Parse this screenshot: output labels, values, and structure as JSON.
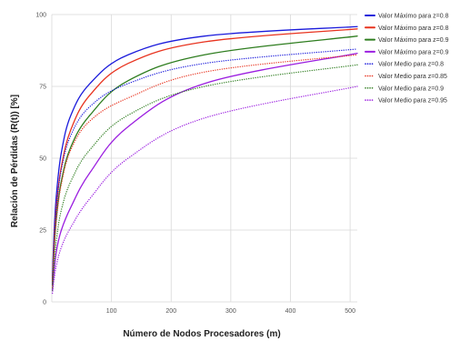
{
  "chart_data": {
    "type": "line",
    "title": "",
    "xlabel": "Número de Nodos Procesadores (m)",
    "ylabel": "Relación de Pérdidas (R(t)) [%]",
    "xlim": [
      0,
      512
    ],
    "ylim": [
      0,
      100
    ],
    "x_ticks": [
      100,
      200,
      300,
      400,
      500
    ],
    "y_ticks": [
      0,
      25,
      50,
      75,
      100
    ],
    "grid": true,
    "legend_position": "right",
    "series": [
      {
        "name": "Valor Máximo para z=0.8",
        "color": "#1a1adb",
        "style": "solid",
        "x": [
          1,
          4,
          8,
          16,
          32,
          64,
          128,
          256,
          512
        ],
        "y": [
          8,
          25,
          38,
          52,
          65,
          76,
          86,
          92.5,
          95.8
        ]
      },
      {
        "name": "Valor Máximo para z=0.8",
        "color": "#e8331f",
        "style": "solid",
        "x": [
          1,
          4,
          8,
          16,
          32,
          64,
          128,
          256,
          512
        ],
        "y": [
          7,
          22,
          34,
          47,
          60,
          72,
          83,
          90.5,
          95
        ]
      },
      {
        "name": "Valor Máximo para z=0.9",
        "color": "#2e7d1f",
        "style": "solid",
        "x": [
          1,
          4,
          8,
          16,
          32,
          64,
          128,
          256,
          512
        ],
        "y": [
          6,
          19,
          30,
          42,
          54,
          65,
          77,
          86,
          92.5
        ]
      },
      {
        "name": "Valor Máximo para z=0.9",
        "color": "#9b1ee0",
        "style": "solid",
        "x": [
          1,
          4,
          8,
          16,
          32,
          64,
          128,
          256,
          512
        ],
        "y": [
          4,
          11,
          18,
          25,
          33,
          45,
          61,
          76,
          86.5
        ]
      },
      {
        "name": "Valor Medio para z=0.8",
        "color": "#1a1adb",
        "style": "dotted",
        "x": [
          1,
          4,
          8,
          16,
          32,
          64,
          128,
          256,
          512
        ],
        "y": [
          6,
          21,
          33,
          46,
          58,
          68,
          76,
          83,
          88
        ]
      },
      {
        "name": "Valor Medio para z=0.85",
        "color": "#e8331f",
        "style": "dotted",
        "x": [
          1,
          4,
          8,
          16,
          32,
          64,
          128,
          256,
          512
        ],
        "y": [
          5,
          18,
          29,
          41,
          53,
          63,
          71,
          80,
          86
        ]
      },
      {
        "name": "Valor Medio para z=0.9",
        "color": "#2e7d1f",
        "style": "dotted",
        "x": [
          1,
          4,
          8,
          16,
          32,
          64,
          128,
          256,
          512
        ],
        "y": [
          4,
          13,
          22,
          32,
          42,
          53,
          65,
          75,
          82.5
        ]
      },
      {
        "name": "Valor Medio para z=0.95",
        "color": "#9b1ee0",
        "style": "dotted",
        "x": [
          1,
          4,
          8,
          16,
          32,
          64,
          128,
          256,
          512
        ],
        "y": [
          3,
          8,
          13,
          19,
          26,
          36,
          50,
          64,
          75
        ]
      }
    ]
  }
}
